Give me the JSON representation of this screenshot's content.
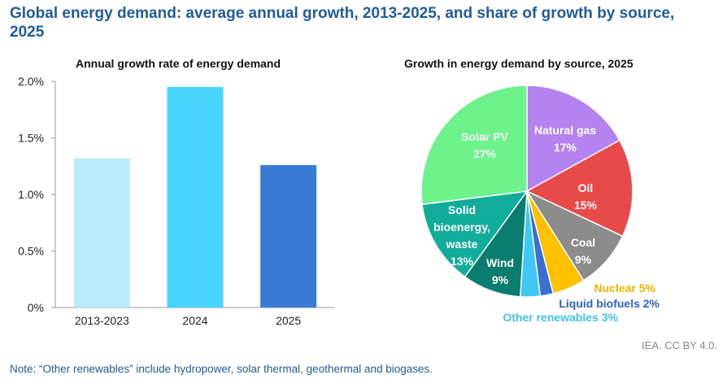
{
  "title": "Global energy demand: average annual growth, 2013-2025, and share of growth by source, 2025",
  "source": "IEA. CC BY 4.0.",
  "note": "Note: “Other renewables” include hydropower, solar thermal, geothermal and biogases.",
  "chart_data": [
    {
      "type": "bar",
      "title": "Annual growth rate of energy demand",
      "categories": [
        "2013-2023",
        "2024",
        "2025"
      ],
      "values": [
        1.32,
        1.95,
        1.26
      ],
      "colors": [
        "#b8ecfb",
        "#47d5fc",
        "#3a7bd5"
      ],
      "ylim": [
        0,
        2.0
      ],
      "yticks": [
        "0%",
        "0.5%",
        "1.0%",
        "1.5%",
        "2.0%"
      ],
      "ytick_values": [
        0,
        0.5,
        1.0,
        1.5,
        2.0
      ],
      "grid": false
    },
    {
      "type": "pie",
      "title": "Growth in energy demand by source, 2025",
      "slices": [
        {
          "name": "Natural gas",
          "value": 17,
          "label": "17%",
          "color": "#b583f0"
        },
        {
          "name": "Oil",
          "value": 15,
          "label": "15%",
          "color": "#e84a4a"
        },
        {
          "name": "Coal",
          "value": 9,
          "label": "9%",
          "color": "#8c8c8c"
        },
        {
          "name": "Nuclear",
          "value": 5,
          "label": "Nuclear 5%",
          "color": "#ffc000"
        },
        {
          "name": "Liquid biofuels",
          "value": 2,
          "label": "Liquid biofuels 2%",
          "color": "#3a6fd0"
        },
        {
          "name": "Other renewables",
          "value": 3,
          "label": "Other renewables 3%",
          "color": "#40c8f5"
        },
        {
          "name": "Wind",
          "value": 9,
          "label": "9%",
          "color": "#0b7d70"
        },
        {
          "name": "Solid bioenergy, waste",
          "value": 13,
          "label": "13%",
          "color": "#12ad9a"
        },
        {
          "name": "Solar PV",
          "value": 27,
          "label": "27%",
          "color": "#6ef28c"
        }
      ]
    }
  ]
}
